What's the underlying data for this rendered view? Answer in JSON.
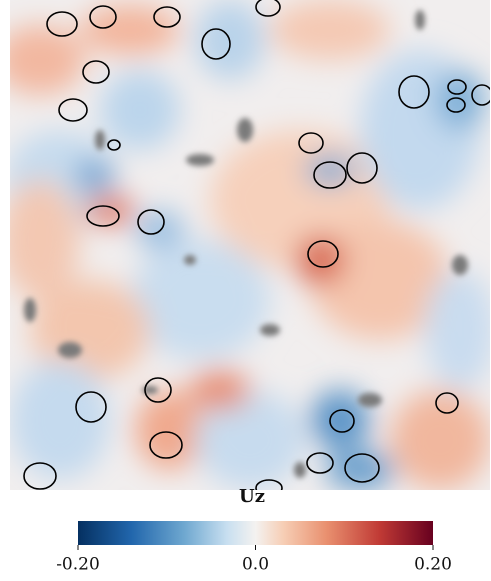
{
  "chart_data": {
    "type": "colormap",
    "colorbar_label": "Uz",
    "clim": [
      -0.2,
      0.2
    ],
    "cticks": [
      {
        "value": -0.2,
        "label": "-0.20"
      },
      {
        "value": 0,
        "label": "0.0"
      },
      {
        "value": 0.2,
        "label": "0.20"
      }
    ]
  }
}
